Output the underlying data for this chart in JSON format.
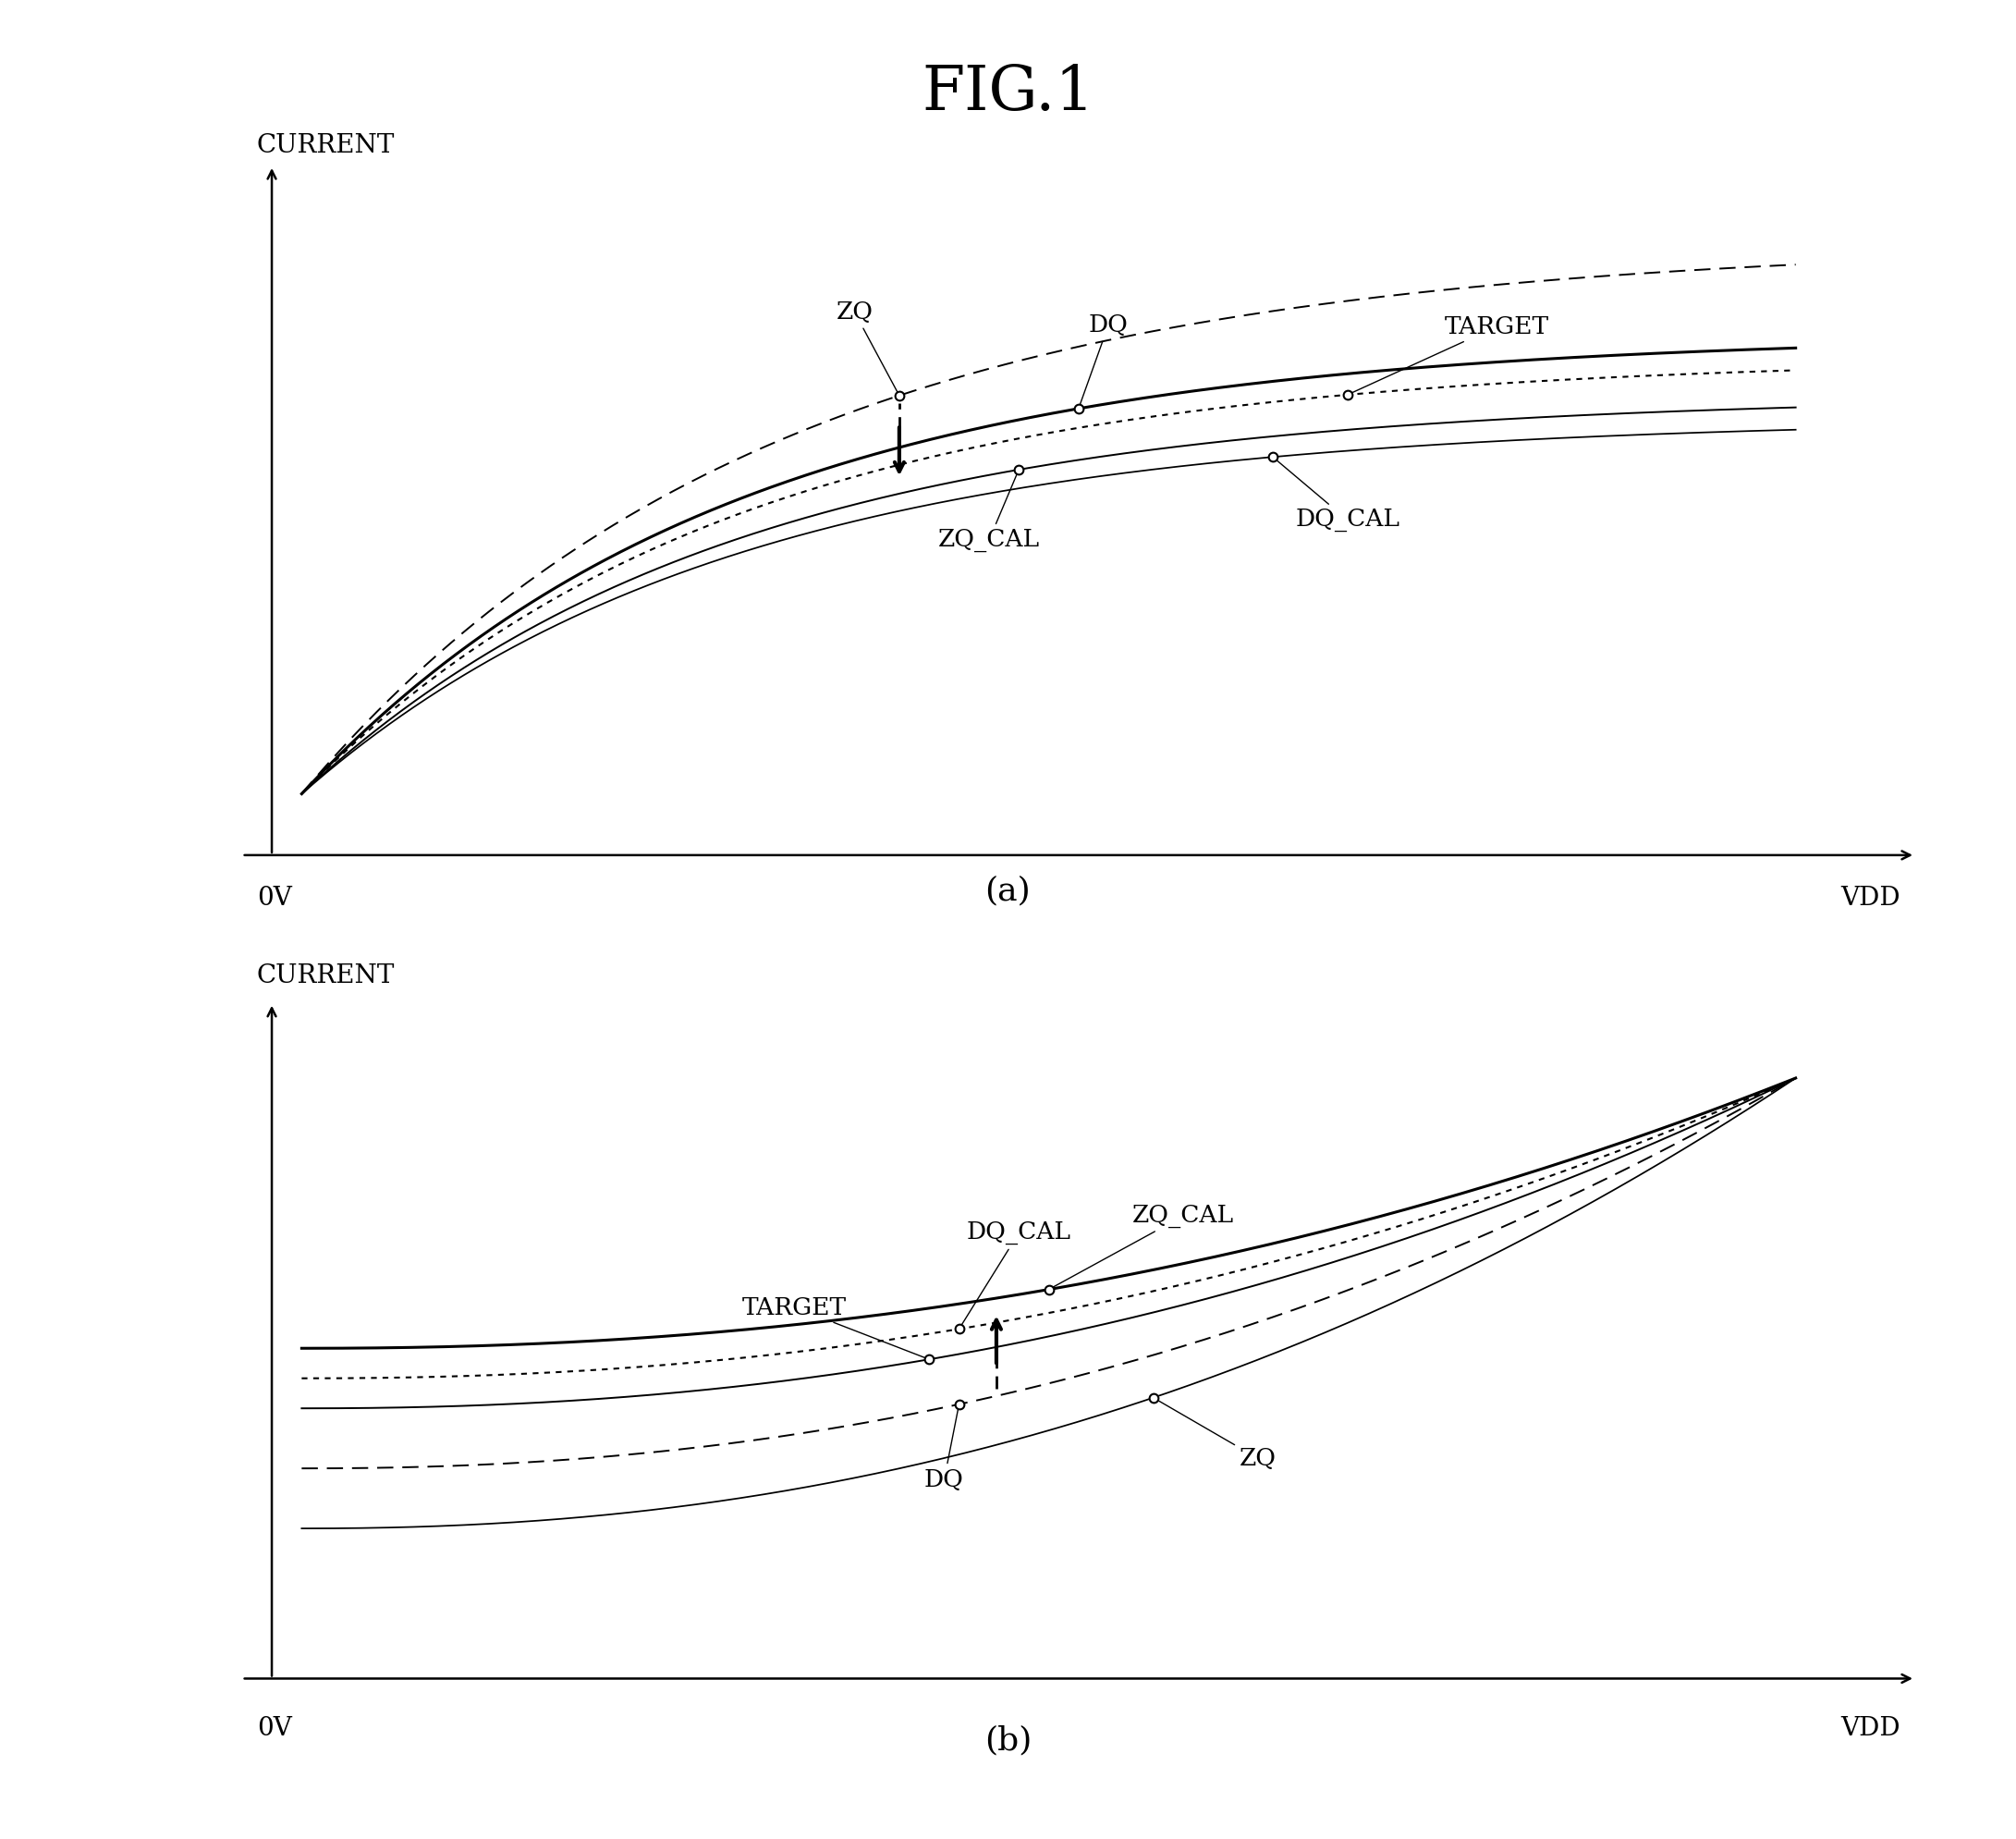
{
  "title": "FIG.1",
  "title_fontsize": 48,
  "subtitle_a": "(a)",
  "subtitle_b": "(b)",
  "subtitle_fontsize": 26,
  "label_fontsize": 20,
  "annotation_fontsize": 19,
  "bg_color": "#ffffff",
  "panel_a": {
    "ylabel": "CURRENT",
    "xlabel_left": "0V",
    "xlabel_right": "VDD",
    "target_label": "TARGET",
    "zq_label": "ZQ",
    "dq_label": "DQ",
    "zq_cal_label": "ZQ_CAL",
    "dq_cal_label": "DQ_CAL"
  },
  "panel_b": {
    "ylabel": "CURRENT",
    "xlabel_left": "0V",
    "xlabel_right": "VDD",
    "target_label": "TARGET",
    "zq_label": "ZQ",
    "dq_label": "DQ",
    "zq_cal_label": "ZQ_CAL",
    "dq_cal_label": "DQ_CAL"
  }
}
